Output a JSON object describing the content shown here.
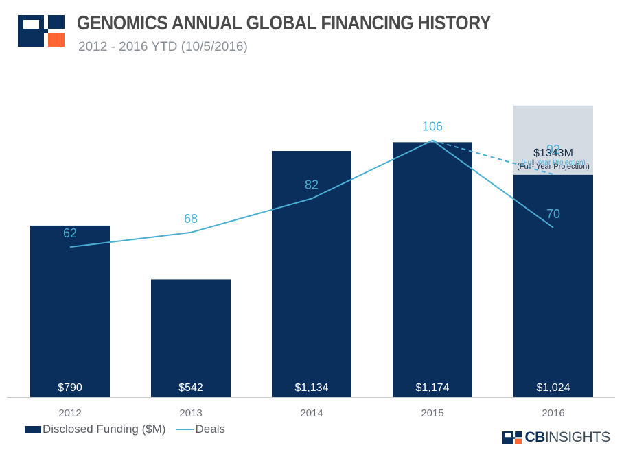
{
  "header": {
    "title": "GENOMICS ANNUAL GLOBAL FINANCING HISTORY",
    "subtitle": "2012 - 2016 YTD (10/5/2016)"
  },
  "colors": {
    "bar": "#0a2f5c",
    "line": "#4aaed3",
    "projection_box": "#d5dbe3",
    "logo_dark": "#0a2f5c",
    "logo_orange": "#ff6633"
  },
  "chart_data": {
    "type": "bar+line",
    "categories": [
      "2012",
      "2013",
      "2014",
      "2015",
      "2016"
    ],
    "series": [
      {
        "name": "Disclosed Funding ($M)",
        "type": "bar",
        "values": [
          790,
          542,
          1134,
          1174,
          1024
        ],
        "labels": [
          "$790",
          "$542",
          "$1,134",
          "$1,174",
          "$1,024"
        ]
      },
      {
        "name": "Deals",
        "type": "line",
        "values": [
          62,
          68,
          82,
          106,
          70
        ],
        "labels": [
          "62",
          "68",
          "82",
          "106",
          "70"
        ]
      }
    ],
    "projection": {
      "category": "2016",
      "funding_value": 1343,
      "funding_label": "$1343M",
      "funding_note": "(Full- Year Projection)",
      "deals_value": 92,
      "deals_label": "92",
      "deals_note": "(Full-Year Projection)"
    },
    "bar_axis_range": [
      0,
      1450
    ],
    "line_axis_range": [
      0,
      130
    ]
  },
  "legend": {
    "funding_label": "Disclosed Funding ($M)",
    "deals_label": "Deals"
  },
  "brand": {
    "prefix": "CB",
    "suffix": "INSIGHTS"
  }
}
